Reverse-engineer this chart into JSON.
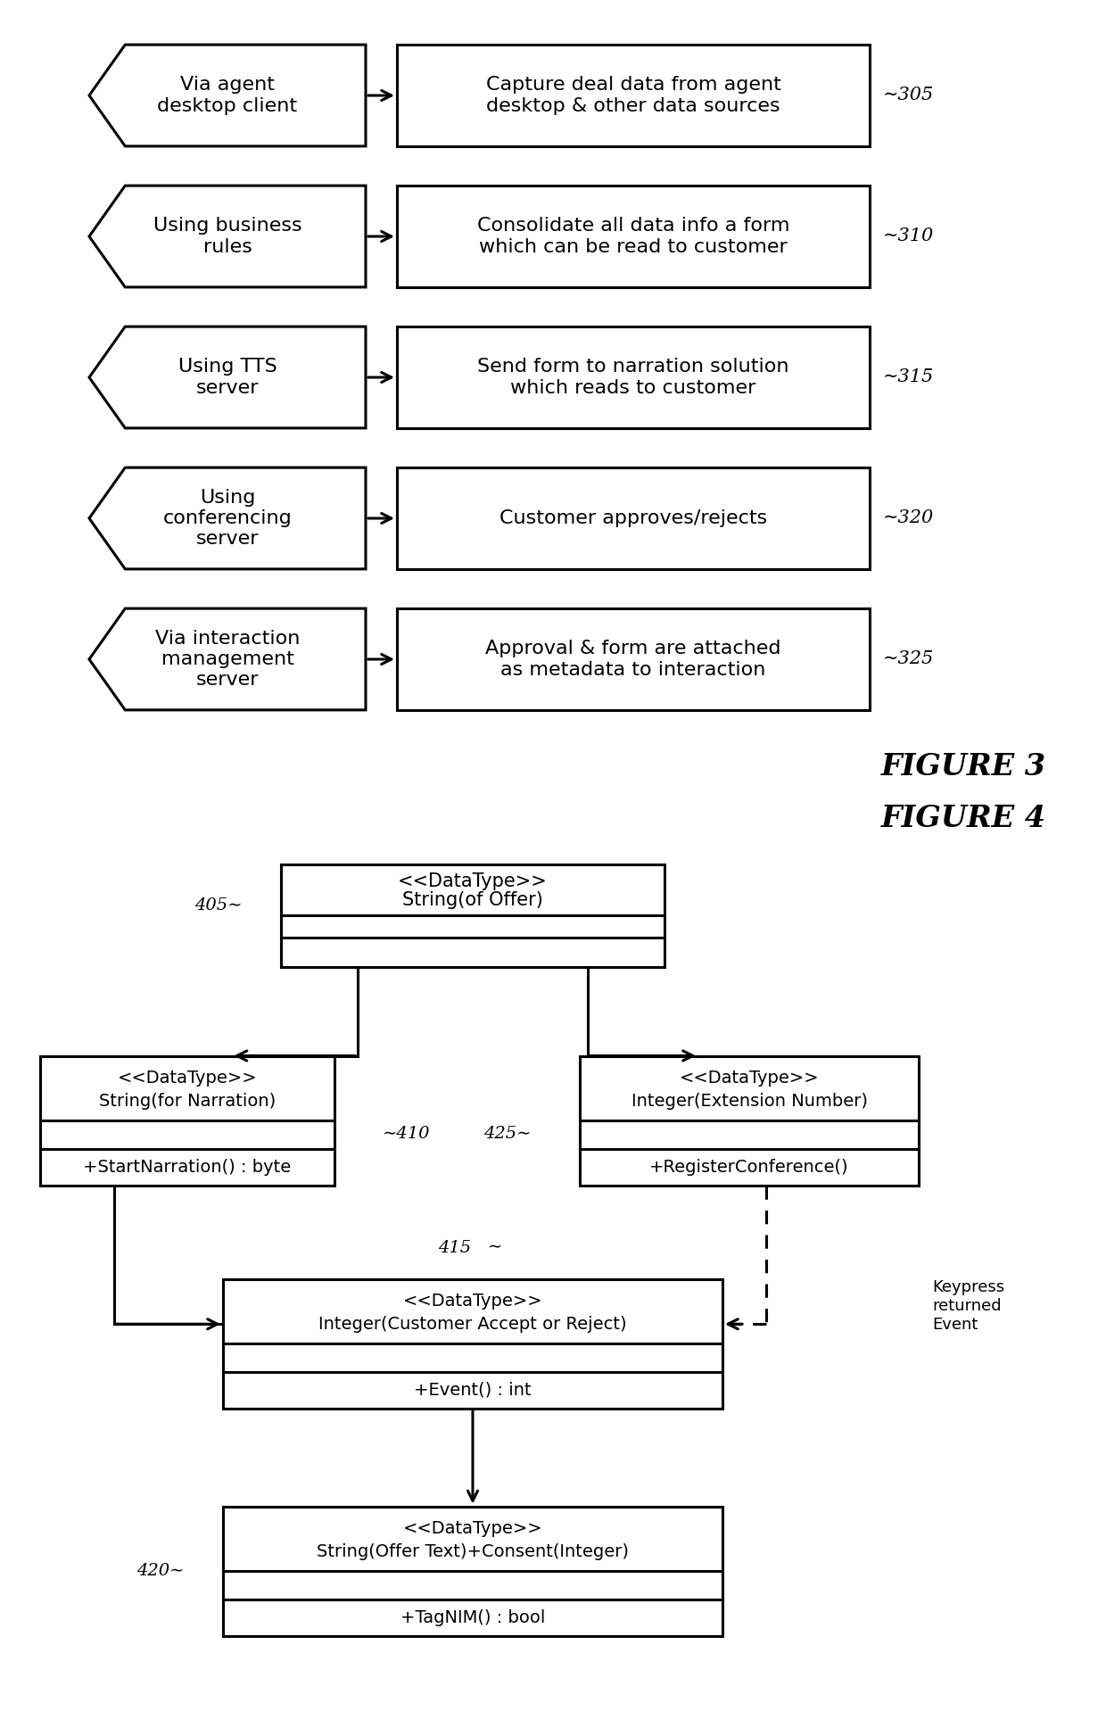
{
  "fig_width": 12.4,
  "fig_height": 19.18,
  "dpi": 100,
  "bg_color": "#ffffff",
  "line_color": "#000000",
  "text_color": "#000000",
  "figure3_label": "FIGURE 3",
  "figure4_label": "FIGURE 4",
  "fig3_rows": [
    {
      "left_text": "Via agent\ndesktop client",
      "right_text": "Capture deal data from agent\ndesktop & other data sources",
      "label": "305"
    },
    {
      "left_text": "Using business\nrules",
      "right_text": "Consolidate all data info a form\nwhich can be read to customer",
      "label": "310"
    },
    {
      "left_text": "Using TTS\nserver",
      "right_text": "Send form to narration solution\nwhich reads to customer",
      "label": "315"
    },
    {
      "left_text": "Using\nconferencing\nserver",
      "right_text": "Customer approves/rejects",
      "label": "320"
    },
    {
      "left_text": "Via interaction\nmanagement\nserver",
      "right_text": "Approval & form are attached\nas metadata to interaction",
      "label": "325"
    }
  ]
}
